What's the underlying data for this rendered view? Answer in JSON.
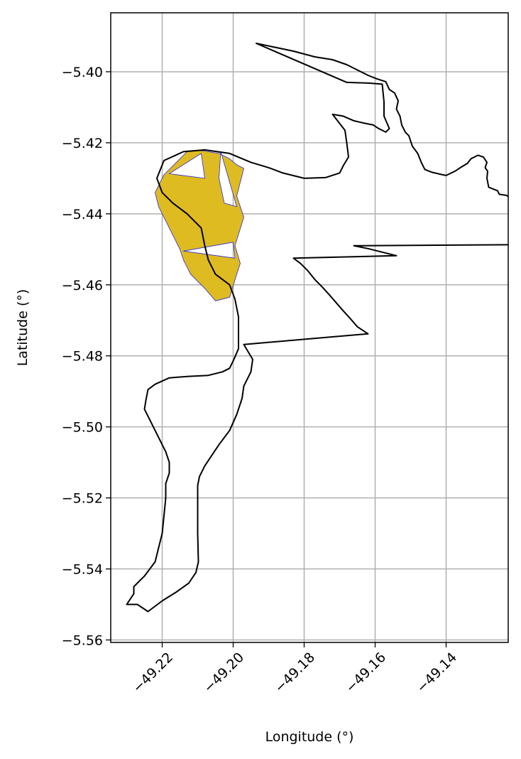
{
  "chart_data": {
    "type": "map",
    "xlabel": "Longitude (°)",
    "ylabel": "Latitude (°)",
    "xlim": [
      -49.2345,
      -49.1225
    ],
    "ylim": [
      -5.5607,
      -5.3834
    ],
    "xticks": [
      -49.22,
      -49.2,
      -49.18,
      -49.16,
      -49.14
    ],
    "yticks": [
      -5.4,
      -5.42,
      -5.44,
      -5.46,
      -5.48,
      -5.5,
      -5.52,
      -5.54,
      -5.56
    ],
    "xtick_labels": [
      "−49.22",
      "−49.20",
      "−49.18",
      "−49.16",
      "−49.14"
    ],
    "ytick_labels": [
      "−5.40",
      "−5.42",
      "−5.44",
      "−5.46",
      "−5.48",
      "−5.50",
      "−5.52",
      "−5.54",
      "−5.56"
    ],
    "grid": true,
    "colors": {
      "outline": "#000000",
      "highlight_fill": "#dfbb22",
      "highlight_edge": "#2a2acc",
      "grid": "#b0b0b0"
    },
    "outline": [
      [
        -49.1935,
        -5.392
      ],
      [
        -49.183,
        -5.3942
      ],
      [
        -49.177,
        -5.3958
      ],
      [
        -49.172,
        -5.3966
      ],
      [
        -49.168,
        -5.398
      ],
      [
        -49.165,
        -5.3995
      ],
      [
        -49.162,
        -5.401
      ],
      [
        -49.1595,
        -5.402
      ],
      [
        -49.157,
        -5.4028
      ],
      [
        -49.156,
        -5.405
      ],
      [
        -49.1545,
        -5.406
      ],
      [
        -49.1535,
        -5.4082
      ],
      [
        -49.154,
        -5.4105
      ],
      [
        -49.153,
        -5.4125
      ],
      [
        -49.1525,
        -5.415
      ],
      [
        -49.1515,
        -5.417
      ],
      [
        -49.1505,
        -5.418
      ],
      [
        -49.15,
        -5.4195
      ],
      [
        -49.1495,
        -5.421
      ],
      [
        -49.148,
        -5.423
      ],
      [
        -49.147,
        -5.4255
      ],
      [
        -49.146,
        -5.4275
      ],
      [
        -49.144,
        -5.4283
      ],
      [
        -49.141,
        -5.429
      ],
      [
        -49.14,
        -5.4292
      ],
      [
        -49.1375,
        -5.428
      ],
      [
        -49.136,
        -5.427
      ],
      [
        -49.134,
        -5.4258
      ],
      [
        -49.133,
        -5.4245
      ],
      [
        -49.131,
        -5.4235
      ],
      [
        -49.1295,
        -5.424
      ],
      [
        -49.1285,
        -5.4255
      ],
      [
        -49.129,
        -5.427
      ],
      [
        -49.1283,
        -5.428
      ],
      [
        -49.1285,
        -5.43
      ],
      [
        -49.128,
        -5.4325
      ],
      [
        -49.1255,
        -5.4335
      ],
      [
        -49.125,
        -5.4345
      ],
      [
        -49.123,
        -5.4348
      ],
      [
        -49.1215,
        -5.4358
      ],
      [
        -49.12,
        -5.4373
      ],
      [
        -49.1195,
        -5.4375
      ],
      [
        -49.119,
        -5.4395
      ],
      [
        -49.12,
        -5.44
      ],
      [
        -49.121,
        -5.441
      ],
      [
        -49.1215,
        -5.442
      ],
      [
        -49.12,
        -5.443
      ],
      [
        -49.119,
        -5.4438
      ],
      [
        -49.1175,
        -5.4445
      ],
      [
        -49.115,
        -5.4448
      ],
      [
        -49.108,
        -5.4458
      ],
      [
        -49.1,
        -5.447
      ],
      [
        -49.09,
        -5.4485
      ],
      [
        -49.166,
        -5.449
      ],
      [
        -49.162,
        -5.4498
      ],
      [
        -49.158,
        -5.4508
      ],
      [
        -49.154,
        -5.4518
      ],
      [
        -49.183,
        -5.4525
      ],
      [
        -49.181,
        -5.454
      ],
      [
        -49.179,
        -5.456
      ],
      [
        -49.177,
        -5.4585
      ],
      [
        -49.175,
        -5.4605
      ],
      [
        -49.173,
        -5.4627
      ],
      [
        -49.171,
        -5.465
      ],
      [
        -49.169,
        -5.4673
      ],
      [
        -49.167,
        -5.4695
      ],
      [
        -49.165,
        -5.4718
      ],
      [
        -49.162,
        -5.4738
      ],
      [
        -49.197,
        -5.4768
      ],
      [
        -49.1945,
        -5.481
      ],
      [
        -49.195,
        -5.4845
      ],
      [
        -49.197,
        -5.4885
      ],
      [
        -49.1975,
        -5.492
      ],
      [
        -49.199,
        -5.4965
      ],
      [
        -49.201,
        -5.501
      ],
      [
        -49.204,
        -5.505
      ],
      [
        -49.206,
        -5.508
      ],
      [
        -49.208,
        -5.511
      ],
      [
        -49.2095,
        -5.514
      ],
      [
        -49.21,
        -5.5165
      ],
      [
        -49.21,
        -5.524
      ],
      [
        -49.21,
        -5.53
      ],
      [
        -49.2098,
        -5.538
      ],
      [
        -49.2105,
        -5.541
      ],
      [
        -49.2125,
        -5.544
      ],
      [
        -49.216,
        -5.5465
      ],
      [
        -49.22,
        -5.549
      ],
      [
        -49.224,
        -5.552
      ],
      [
        -49.227,
        -5.55
      ],
      [
        -49.23,
        -5.55
      ],
      [
        -49.228,
        -5.547
      ],
      [
        -49.228,
        -5.545
      ],
      [
        -49.225,
        -5.542
      ],
      [
        -49.222,
        -5.538
      ],
      [
        -49.22,
        -5.53
      ],
      [
        -49.219,
        -5.52
      ],
      [
        -49.219,
        -5.516
      ],
      [
        -49.218,
        -5.513
      ],
      [
        -49.218,
        -5.51
      ],
      [
        -49.219,
        -5.507
      ],
      [
        -49.2205,
        -5.504
      ],
      [
        -49.2225,
        -5.5
      ],
      [
        -49.225,
        -5.495
      ],
      [
        -49.2245,
        -5.492
      ],
      [
        -49.224,
        -5.4895
      ],
      [
        -49.222,
        -5.488
      ],
      [
        -49.218,
        -5.4862
      ],
      [
        -49.213,
        -5.4858
      ],
      [
        -49.207,
        -5.4855
      ],
      [
        -49.203,
        -5.4845
      ],
      [
        -49.201,
        -5.4835
      ],
      [
        -49.1998,
        -5.481
      ],
      [
        -49.1985,
        -5.478
      ],
      [
        -49.1985,
        -5.473
      ],
      [
        -49.1985,
        -5.469
      ],
      [
        -49.1995,
        -5.464
      ],
      [
        -49.201,
        -5.46
      ],
      [
        -49.205,
        -5.457
      ],
      [
        -49.207,
        -5.453
      ],
      [
        -49.208,
        -5.449
      ],
      [
        -49.209,
        -5.444
      ],
      [
        -49.213,
        -5.44
      ],
      [
        -49.217,
        -5.437
      ],
      [
        -49.22,
        -5.434
      ],
      [
        -49.2215,
        -5.43
      ],
      [
        -49.2195,
        -5.425
      ],
      [
        -49.214,
        -5.4225
      ],
      [
        -49.208,
        -5.422
      ],
      [
        -49.201,
        -5.423
      ],
      [
        -49.195,
        -5.4255
      ],
      [
        -49.19,
        -5.427
      ],
      [
        -49.186,
        -5.4285
      ],
      [
        -49.18,
        -5.43
      ],
      [
        -49.174,
        -5.4298
      ],
      [
        -49.17,
        -5.4285
      ],
      [
        -49.169,
        -5.4265
      ],
      [
        -49.1675,
        -5.424
      ],
      [
        -49.168,
        -5.42
      ],
      [
        -49.1685,
        -5.4165
      ],
      [
        -49.172,
        -5.412
      ],
      [
        -49.169,
        -5.4125
      ],
      [
        -49.166,
        -5.4138
      ],
      [
        -49.163,
        -5.4145
      ],
      [
        -49.1605,
        -5.415
      ],
      [
        -49.159,
        -5.416
      ],
      [
        -49.157,
        -5.417
      ],
      [
        -49.156,
        -5.416
      ],
      [
        -49.1575,
        -5.4125
      ],
      [
        -49.1575,
        -5.4085
      ],
      [
        -49.158,
        -5.4035
      ],
      [
        -49.162,
        -5.4032
      ],
      [
        -49.168,
        -5.403
      ],
      [
        -49.1935,
        -5.392
      ]
    ],
    "highlight": [
      [
        -49.2195,
        -5.429
      ],
      [
        -49.213,
        -5.4225
      ],
      [
        -49.209,
        -5.4222
      ],
      [
        -49.204,
        -5.423
      ],
      [
        -49.201,
        -5.4245
      ],
      [
        -49.199,
        -5.4262
      ],
      [
        -49.197,
        -5.4272
      ],
      [
        -49.199,
        -5.435
      ],
      [
        -49.198,
        -5.438
      ],
      [
        -49.197,
        -5.441
      ],
      [
        -49.1995,
        -5.449
      ],
      [
        -49.198,
        -5.454
      ],
      [
        -49.199,
        -5.457
      ],
      [
        -49.201,
        -5.4635
      ],
      [
        -49.205,
        -5.4645
      ],
      [
        -49.208,
        -5.461
      ],
      [
        -49.212,
        -5.457
      ],
      [
        -49.214,
        -5.453
      ],
      [
        -49.215,
        -5.45
      ],
      [
        -49.217,
        -5.446
      ],
      [
        -49.219,
        -5.442
      ],
      [
        -49.221,
        -5.438
      ],
      [
        -49.222,
        -5.434
      ],
      [
        -49.2195,
        -5.429
      ]
    ],
    "holes": [
      [
        [
          -49.218,
          -5.4287
        ],
        [
          -49.208,
          -5.43
        ],
        [
          -49.209,
          -5.423
        ],
        [
          -49.218,
          -5.4287
        ]
      ],
      [
        [
          -49.2035,
          -5.4225
        ],
        [
          -49.199,
          -5.438
        ],
        [
          -49.2025,
          -5.437
        ],
        [
          -49.204,
          -5.43
        ],
        [
          -49.2035,
          -5.4225
        ]
      ],
      [
        [
          -49.214,
          -5.4505
        ],
        [
          -49.2,
          -5.448
        ],
        [
          -49.1995,
          -5.4525
        ],
        [
          -49.214,
          -5.4505
        ]
      ]
    ]
  }
}
